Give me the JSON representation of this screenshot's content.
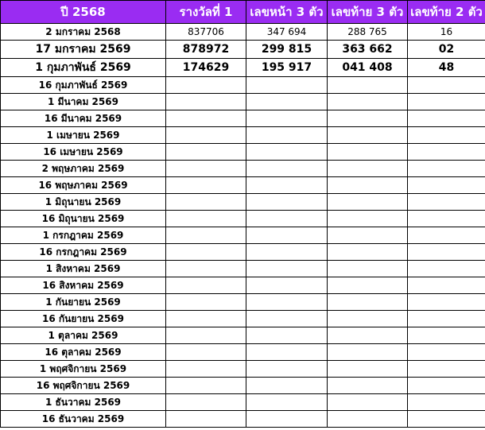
{
  "table": {
    "header": [
      "ปี 2568",
      "รางวัลที่ 1",
      "เลขหน้า 3 ตัว",
      "เลขท้าย 3 ตัว",
      "เลขท้าย 2 ตัว"
    ],
    "rows": [
      [
        "2 มกราคม 2568",
        "837706",
        "347 694",
        "288 765",
        "16"
      ],
      [
        "17 มกราคม 2569",
        "878972",
        "299 815",
        "363 662",
        "02"
      ],
      [
        "1 กุมภาพันธ์ 2569",
        "174629",
        "195 917",
        "041 408",
        "48"
      ],
      [
        "16 กุมภาพันธ์ 2569"
      ],
      [
        "1 มีนาคม 2569"
      ],
      [
        "16 มีนาคม 2569"
      ],
      [
        "1 เมษายน 2569"
      ],
      [
        "16 เมษายน 2569"
      ],
      [
        "2 พฤษภาคม 2569"
      ],
      [
        "16 พฤษภาคม 2569"
      ],
      [
        "1 มิถุนายน 2569"
      ],
      [
        "16 มิถุนายน 2569"
      ],
      [
        "1 กรกฎาคม 2569"
      ],
      [
        "16 กรกฎาคม 2569"
      ],
      [
        "1 สิงหาคม 2569"
      ],
      [
        "16 สิงหาคม 2569"
      ],
      [
        "1 กันยายน 2569"
      ],
      [
        "16 กันยายน 2569"
      ],
      [
        "1 ตุลาคม 2569"
      ],
      [
        "16 ตุลาคม 2569"
      ],
      [
        "1 พฤศจิกายน 2569"
      ],
      [
        "16 พฤศจิกายน 2569"
      ],
      [
        "1 ธันวาคม 2569"
      ],
      [
        "16 ธันวาคม 2569"
      ]
    ]
  }
}
